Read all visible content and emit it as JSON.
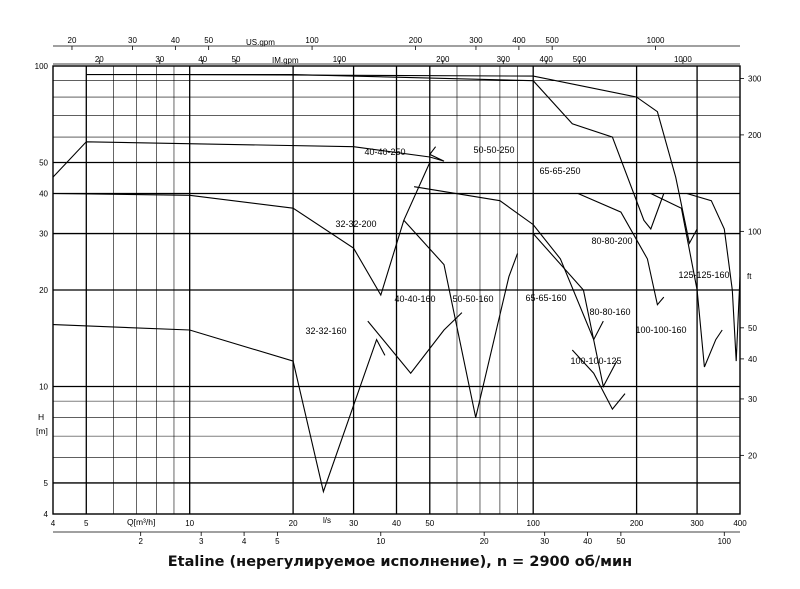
{
  "caption": "Etaline (нерегулируемое исполнение), n = 2900 об/мин",
  "chart_data": {
    "type": "line",
    "title": "",
    "xscale": "log",
    "yscale": "log",
    "xlim": [
      4,
      400
    ],
    "ylim": [
      4,
      100
    ],
    "xlabel": "Q[m³/h]",
    "ylabel": "H [m]",
    "grid": true,
    "x_ticks": [
      4,
      5,
      10,
      20,
      30,
      40,
      50,
      100,
      200,
      300,
      400
    ],
    "y_ticks": [
      4,
      5,
      10,
      20,
      30,
      40,
      50,
      100
    ],
    "secondary_axes": {
      "us_gpm": {
        "label": "US.gpm",
        "ticks": [
          20,
          30,
          40,
          50,
          100,
          200,
          300,
          400,
          500,
          1000
        ]
      },
      "im_gpm": {
        "label": "IM.gpm",
        "ticks": [
          20,
          30,
          40,
          50,
          100,
          200,
          300,
          400,
          500,
          1000
        ]
      },
      "ls": {
        "label": "l/s",
        "ticks": [
          2,
          3,
          4,
          5,
          10,
          20,
          30,
          40,
          50,
          100
        ]
      },
      "ft": {
        "label": "ft",
        "ticks": [
          20,
          30,
          40,
          50,
          100,
          200,
          300
        ]
      }
    },
    "series": [
      {
        "name": "32-32-160",
        "boundary": [
          [
            4,
            15.6
          ],
          [
            10,
            15
          ],
          [
            20,
            12
          ],
          [
            24.5,
            4.7
          ],
          [
            35,
            14
          ],
          [
            37,
            12.5
          ]
        ]
      },
      {
        "name": "32-32-200",
        "boundary": [
          [
            4,
            40
          ],
          [
            10,
            39.5
          ],
          [
            20,
            36
          ],
          [
            30,
            27
          ],
          [
            36,
            19.3
          ],
          [
            42,
            33
          ],
          [
            50,
            50
          ]
        ]
      },
      {
        "name": "40-40-160",
        "boundary": [
          [
            33,
            16
          ],
          [
            44,
            11
          ],
          [
            55,
            15
          ],
          [
            62,
            17
          ]
        ]
      },
      {
        "name": "40-40-250",
        "boundary": [
          [
            4,
            45
          ],
          [
            5,
            58
          ],
          [
            30,
            56
          ],
          [
            50,
            52
          ],
          [
            55,
            50.5
          ],
          [
            50,
            53
          ],
          [
            52,
            56
          ]
        ]
      },
      {
        "name": "50-50-160",
        "boundary": [
          [
            42,
            33
          ],
          [
            55,
            24
          ],
          [
            68,
            8
          ],
          [
            85,
            22
          ],
          [
            90,
            26
          ]
        ]
      },
      {
        "name": "50-50-250",
        "boundary": [
          [
            5,
            94
          ],
          [
            20,
            94
          ],
          [
            100,
            90
          ],
          [
            130,
            66
          ],
          [
            170,
            60
          ],
          [
            210,
            33
          ],
          [
            220,
            31
          ],
          [
            240,
            40
          ]
        ]
      },
      {
        "name": "65-65-160",
        "boundary": [
          [
            45,
            42
          ],
          [
            80,
            38
          ],
          [
            100,
            32
          ],
          [
            120,
            25
          ],
          [
            150,
            14
          ],
          [
            160,
            16
          ]
        ]
      },
      {
        "name": "65-65-250",
        "boundary": [
          [
            10,
            94
          ],
          [
            100,
            93
          ],
          [
            200,
            80
          ],
          [
            230,
            72
          ],
          [
            260,
            45
          ],
          [
            285,
            28
          ],
          [
            300,
            31
          ]
        ]
      },
      {
        "name": "80-80-160",
        "boundary": [
          [
            100,
            30
          ],
          [
            140,
            20
          ],
          [
            160,
            10
          ],
          [
            175,
            12
          ]
        ]
      },
      {
        "name": "80-80-200",
        "boundary": [
          [
            135,
            40
          ],
          [
            180,
            35
          ],
          [
            215,
            25
          ],
          [
            230,
            18
          ],
          [
            240,
            19
          ]
        ]
      },
      {
        "name": "100-100-125",
        "boundary": [
          [
            130,
            13
          ],
          [
            150,
            11
          ],
          [
            170,
            8.5
          ],
          [
            185,
            9.5
          ]
        ]
      },
      {
        "name": "100-100-160",
        "boundary": [
          [
            220,
            40
          ],
          [
            270,
            36
          ],
          [
            300,
            20
          ],
          [
            315,
            11.5
          ],
          [
            340,
            14
          ],
          [
            355,
            15
          ]
        ]
      },
      {
        "name": "125-125-160",
        "boundary": [
          [
            280,
            40
          ],
          [
            330,
            38
          ],
          [
            360,
            31
          ],
          [
            380,
            20
          ],
          [
            390,
            12
          ],
          [
            400,
            22
          ]
        ]
      }
    ]
  }
}
